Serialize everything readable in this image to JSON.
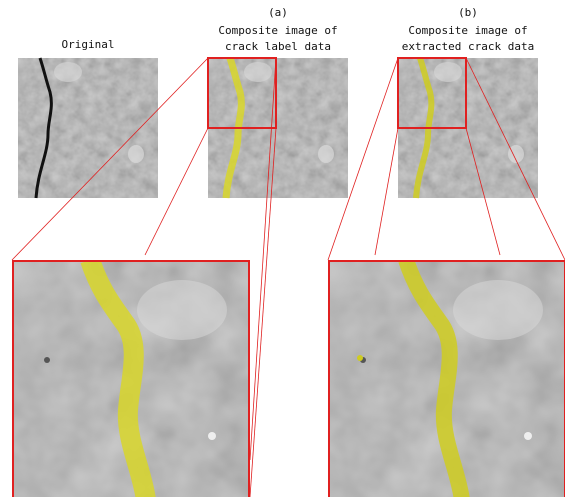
{
  "original": {
    "title": "Original"
  },
  "panel_a": {
    "label": "(a)",
    "title_lines": [
      "Composite image of",
      "crack label data"
    ]
  },
  "panel_b": {
    "label": "(b)",
    "title_lines": [
      "Composite image of",
      "extracted crack data"
    ]
  }
}
